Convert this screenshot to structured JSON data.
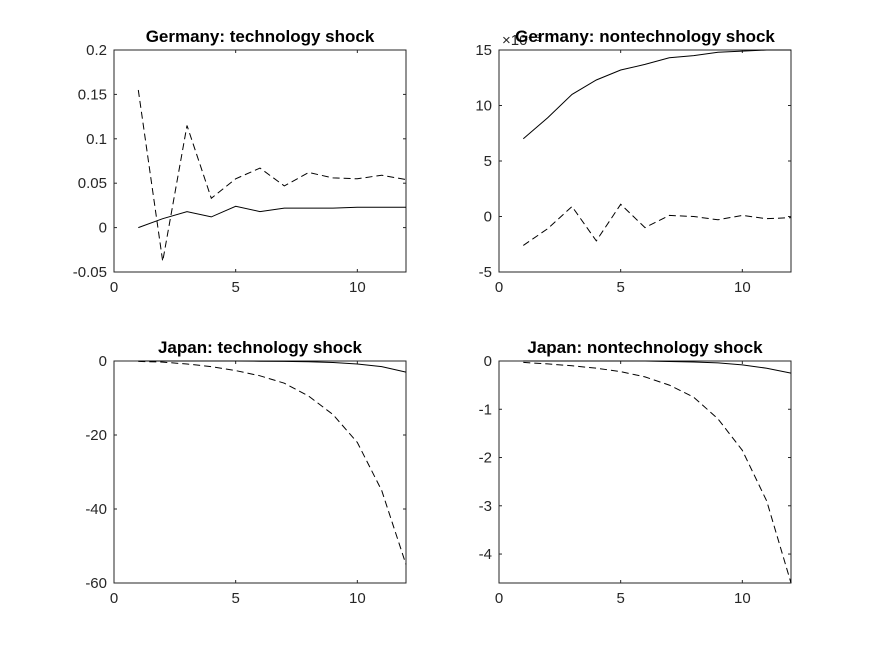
{
  "chart_data": [
    {
      "type": "line",
      "title": "Germany: technology shock",
      "xlim": [
        0,
        12
      ],
      "ylim": [
        -0.05,
        0.2
      ],
      "xticks": [
        "0",
        "5",
        "10"
      ],
      "yticks": [
        "0.2",
        "0.15",
        "0.1",
        "0.05",
        "0",
        "-0.05"
      ],
      "x": [
        1,
        2,
        3,
        4,
        5,
        6,
        7,
        8,
        9,
        10,
        11,
        12
      ],
      "series": [
        {
          "style": "solid",
          "values": [
            0.0,
            0.01,
            0.018,
            0.012,
            0.024,
            0.018,
            0.022,
            0.022,
            0.022,
            0.023,
            0.023,
            0.023
          ]
        },
        {
          "style": "dashed",
          "values": [
            0.155,
            -0.038,
            0.115,
            0.033,
            0.055,
            0.067,
            0.047,
            0.062,
            0.056,
            0.055,
            0.059,
            0.054
          ]
        }
      ]
    },
    {
      "type": "line",
      "title": "Germany: nontechnology shock",
      "exponent": "×10⁻³",
      "xlim": [
        0,
        12
      ],
      "ylim": [
        -5,
        15
      ],
      "xticks": [
        "0",
        "5",
        "10"
      ],
      "yticks": [
        "15",
        "10",
        "5",
        "0",
        "-5"
      ],
      "x": [
        1,
        2,
        3,
        4,
        5,
        6,
        7,
        8,
        9,
        10,
        11,
        12
      ],
      "series": [
        {
          "style": "solid",
          "values": [
            7.0,
            8.9,
            11.0,
            12.3,
            13.2,
            13.7,
            14.3,
            14.5,
            14.8,
            14.9,
            15.0,
            15.0
          ]
        },
        {
          "style": "dashed",
          "values": [
            -2.6,
            -1.1,
            0.9,
            -2.2,
            1.1,
            -1.0,
            0.1,
            0.0,
            -0.3,
            0.1,
            -0.2,
            -0.1
          ]
        }
      ]
    },
    {
      "type": "line",
      "title": "Japan: technology shock",
      "xlim": [
        0,
        12
      ],
      "ylim": [
        -60,
        0
      ],
      "xticks": [
        "0",
        "5",
        "10"
      ],
      "yticks": [
        "0",
        "-20",
        "-40",
        "-60"
      ],
      "x": [
        1,
        2,
        3,
        4,
        5,
        6,
        7,
        8,
        9,
        10,
        11,
        12
      ],
      "series": [
        {
          "style": "solid",
          "values": [
            0,
            0,
            0,
            0,
            0,
            -0.05,
            -0.1,
            -0.2,
            -0.4,
            -0.8,
            -1.5,
            -3.0
          ]
        },
        {
          "style": "dashed",
          "values": [
            -0.1,
            -0.3,
            -0.8,
            -1.5,
            -2.6,
            -4.0,
            -6.0,
            -9.5,
            -14.5,
            -22.0,
            -35.0,
            -55.0
          ]
        }
      ]
    },
    {
      "type": "line",
      "title": "Japan: nontechnology shock",
      "xlim": [
        0,
        12
      ],
      "ylim": [
        -4.6,
        0
      ],
      "xticks": [
        "0",
        "5",
        "10"
      ],
      "yticks": [
        "0",
        "-1",
        "-2",
        "-3",
        "-4"
      ],
      "x": [
        1,
        2,
        3,
        4,
        5,
        6,
        7,
        8,
        9,
        10,
        11,
        12
      ],
      "series": [
        {
          "style": "solid",
          "values": [
            0,
            0,
            0,
            0,
            0,
            0,
            -0.01,
            -0.02,
            -0.04,
            -0.08,
            -0.15,
            -0.25
          ]
        },
        {
          "style": "dashed",
          "values": [
            -0.03,
            -0.06,
            -0.1,
            -0.15,
            -0.22,
            -0.33,
            -0.5,
            -0.75,
            -1.2,
            -1.85,
            -2.9,
            -4.6
          ]
        }
      ]
    }
  ]
}
